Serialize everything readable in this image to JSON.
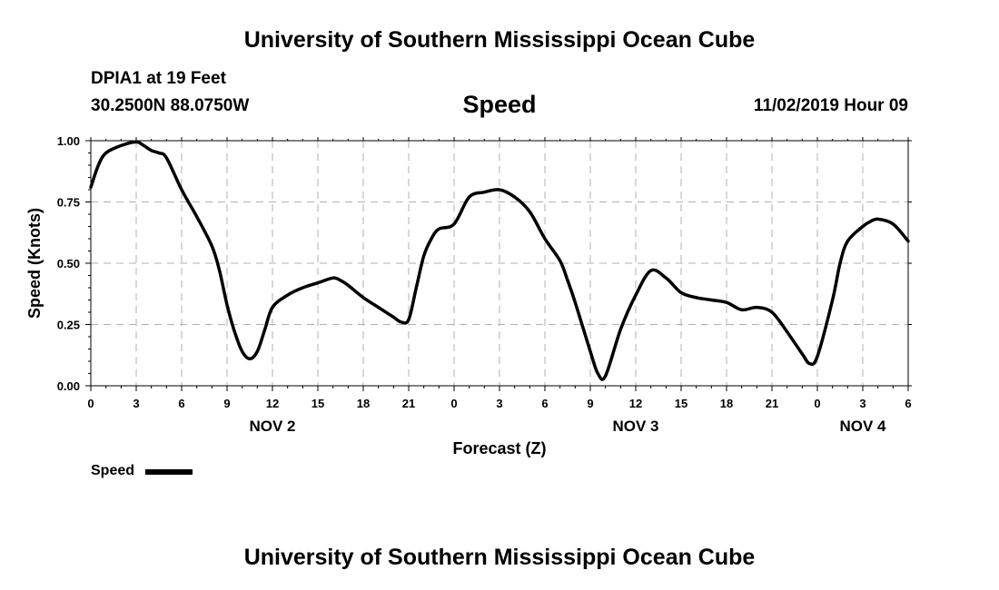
{
  "header": {
    "title": "University of Southern Mississippi Ocean Cube",
    "station": "DPIA1 at 19 Feet",
    "coordinates": "30.2500N 88.0750W",
    "parameter": "Speed",
    "datetime": "11/02/2019 Hour 09"
  },
  "footer": {
    "title": "University of Southern Mississippi Ocean Cube"
  },
  "legend": {
    "label": "Speed",
    "line_color": "#000000"
  },
  "chart_data": {
    "type": "line",
    "title": "Speed",
    "xlabel": "Forecast (Z)",
    "ylabel": "Speed (Knots)",
    "xlim": [
      0,
      54
    ],
    "ylim": [
      0,
      1.0
    ],
    "grid": true,
    "legend_position": "bottom-left",
    "y_ticks": [
      "0.00",
      "0.25",
      "0.50",
      "0.75",
      "1.00"
    ],
    "y_tick_values": [
      0,
      0.25,
      0.5,
      0.75,
      1.0
    ],
    "x_tick_values": [
      0,
      3,
      6,
      9,
      12,
      15,
      18,
      21,
      24,
      27,
      30,
      33,
      36,
      39,
      42,
      45,
      48,
      51,
      54
    ],
    "x_tick_labels": [
      "0",
      "3",
      "6",
      "9",
      "12",
      "15",
      "18",
      "21",
      "0",
      "3",
      "6",
      "9",
      "12",
      "15",
      "18",
      "21",
      "0",
      "3",
      "6"
    ],
    "day_labels": [
      {
        "x": 12,
        "label": "NOV 2"
      },
      {
        "x": 36,
        "label": "NOV 3"
      },
      {
        "x": 51,
        "label": "NOV 4"
      }
    ],
    "series": [
      {
        "name": "Speed",
        "color": "#000000",
        "x": [
          0,
          0.5,
          1,
          2,
          3,
          3.5,
          4,
          4.5,
          5,
          6,
          7,
          8,
          8.5,
          9,
          9.5,
          10,
          10.5,
          11,
          11.5,
          12,
          13,
          14,
          15,
          16,
          16.5,
          17,
          18,
          19,
          20,
          20.5,
          21,
          21.5,
          22,
          22.5,
          23,
          24,
          25,
          26,
          27,
          28,
          29,
          30,
          31,
          31.5,
          32,
          33,
          33.5,
          34,
          35,
          36,
          37,
          38,
          39,
          40,
          41,
          42,
          43,
          44,
          45,
          46,
          47,
          47.5,
          48,
          49,
          49.5,
          50,
          51,
          51.5,
          52,
          53,
          54
        ],
        "values": [
          0.81,
          0.9,
          0.95,
          0.98,
          0.995,
          0.98,
          0.96,
          0.95,
          0.93,
          0.8,
          0.69,
          0.57,
          0.47,
          0.33,
          0.22,
          0.14,
          0.11,
          0.14,
          0.23,
          0.32,
          0.37,
          0.4,
          0.42,
          0.44,
          0.43,
          0.41,
          0.36,
          0.32,
          0.28,
          0.26,
          0.27,
          0.4,
          0.53,
          0.6,
          0.64,
          0.66,
          0.77,
          0.79,
          0.8,
          0.77,
          0.71,
          0.6,
          0.51,
          0.43,
          0.34,
          0.14,
          0.05,
          0.04,
          0.23,
          0.37,
          0.47,
          0.44,
          0.38,
          0.36,
          0.35,
          0.34,
          0.31,
          0.32,
          0.3,
          0.22,
          0.13,
          0.09,
          0.12,
          0.35,
          0.5,
          0.59,
          0.65,
          0.67,
          0.68,
          0.66,
          0.59
        ]
      }
    ]
  }
}
